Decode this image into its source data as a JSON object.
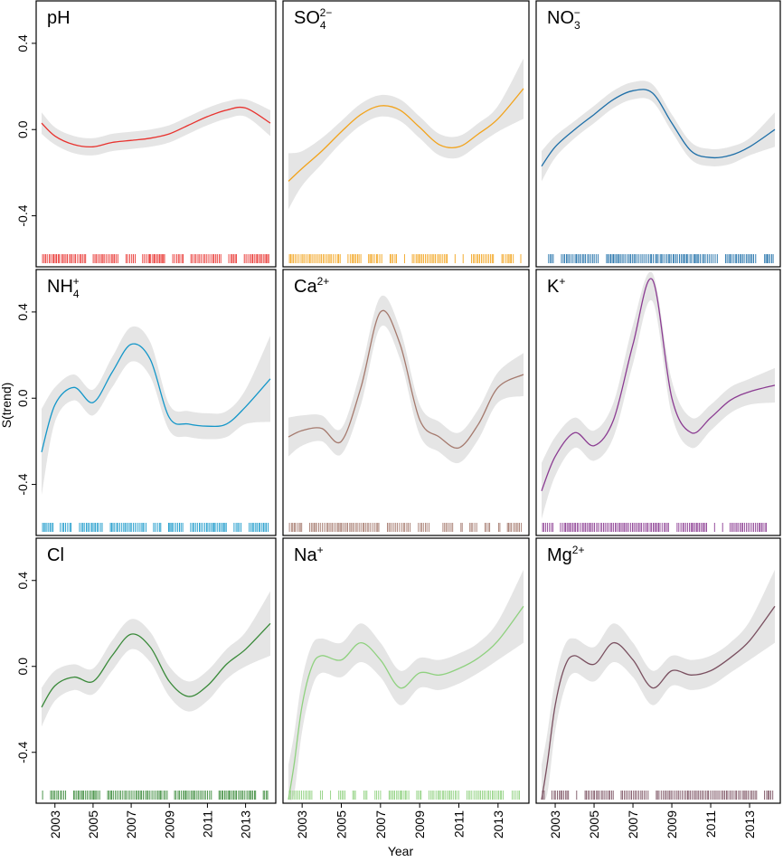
{
  "chart_data": {
    "type": "line",
    "ylabel": "S(trend)",
    "xlabel": "Year",
    "x_ticks": [
      "2003",
      "2005",
      "2007",
      "2009",
      "2011",
      "2013"
    ],
    "y_ticks": [
      "0.4",
      "0.0",
      "-0.4"
    ],
    "xlim": [
      2002.3,
      2014.3
    ],
    "ylim": [
      -0.62,
      0.58
    ],
    "panels": [
      {
        "title": "pH",
        "title_base": "pH",
        "title_sub": "",
        "title_sup": "",
        "color": "#e8322e",
        "x": [
          2002.3,
          2003,
          2004,
          2005,
          2006,
          2007,
          2008,
          2009,
          2010,
          2011,
          2012,
          2013,
          2014.3
        ],
        "y": [
          0.03,
          -0.03,
          -0.07,
          -0.08,
          -0.06,
          -0.05,
          -0.04,
          -0.02,
          0.02,
          0.06,
          0.09,
          0.1,
          0.03
        ],
        "band": [
          0.05,
          0.04,
          0.04,
          0.04,
          0.04,
          0.04,
          0.04,
          0.04,
          0.04,
          0.04,
          0.04,
          0.04,
          0.06
        ]
      },
      {
        "title": "SO42−",
        "title_base": "SO",
        "title_sub": "4",
        "title_sup": "2−",
        "color": "#f2a31b",
        "x": [
          2002.3,
          2003,
          2004,
          2005,
          2006,
          2007,
          2008,
          2009,
          2010,
          2011,
          2012,
          2013,
          2014.3
        ],
        "y": [
          -0.24,
          -0.18,
          -0.1,
          -0.01,
          0.07,
          0.11,
          0.09,
          0.01,
          -0.07,
          -0.08,
          -0.02,
          0.05,
          0.19
        ],
        "band": [
          0.13,
          0.08,
          0.06,
          0.05,
          0.05,
          0.05,
          0.05,
          0.05,
          0.05,
          0.05,
          0.05,
          0.06,
          0.14
        ]
      },
      {
        "title": "NO3−",
        "title_base": "NO",
        "title_sub": "3",
        "title_sup": "−",
        "color": "#1e6fa8",
        "x": [
          2002.3,
          2003,
          2004,
          2005,
          2006,
          2007,
          2008,
          2009,
          2010,
          2011,
          2012,
          2013,
          2014.3
        ],
        "y": [
          -0.17,
          -0.08,
          0.0,
          0.07,
          0.14,
          0.18,
          0.17,
          0.03,
          -0.1,
          -0.13,
          -0.12,
          -0.08,
          0.0
        ],
        "band": [
          0.07,
          0.05,
          0.04,
          0.04,
          0.04,
          0.04,
          0.04,
          0.04,
          0.04,
          0.04,
          0.04,
          0.04,
          0.08
        ]
      },
      {
        "title": "NH4+",
        "title_base": "NH",
        "title_sub": "4",
        "title_sup": "+",
        "color": "#1597c9",
        "x": [
          2002.3,
          2003,
          2004,
          2005,
          2006,
          2007,
          2008,
          2009,
          2010,
          2011,
          2012,
          2013,
          2014.3
        ],
        "y": [
          -0.25,
          -0.03,
          0.05,
          -0.02,
          0.12,
          0.25,
          0.18,
          -0.09,
          -0.12,
          -0.13,
          -0.12,
          -0.04,
          0.09
        ],
        "band": [
          0.2,
          0.08,
          0.06,
          0.06,
          0.07,
          0.08,
          0.08,
          0.06,
          0.06,
          0.06,
          0.06,
          0.08,
          0.2
        ]
      },
      {
        "title": "Ca2+",
        "title_base": "Ca",
        "title_sub": "",
        "title_sup": "2+",
        "color": "#a57a6e",
        "x": [
          2002.3,
          2003,
          2004,
          2005,
          2006,
          2007,
          2008,
          2009,
          2010,
          2011,
          2012,
          2013,
          2014.3
        ],
        "y": [
          -0.18,
          -0.15,
          -0.14,
          -0.2,
          0.05,
          0.4,
          0.25,
          -0.1,
          -0.18,
          -0.23,
          -0.12,
          0.05,
          0.11
        ],
        "band": [
          0.09,
          0.07,
          0.06,
          0.06,
          0.08,
          0.07,
          0.07,
          0.07,
          0.07,
          0.07,
          0.07,
          0.07,
          0.1
        ]
      },
      {
        "title": "K+",
        "title_base": "K",
        "title_sub": "",
        "title_sup": "+",
        "color": "#8b3c92",
        "x": [
          2002.3,
          2003,
          2004,
          2005,
          2006,
          2007,
          2008,
          2009,
          2010,
          2011,
          2012,
          2013,
          2014.3
        ],
        "y": [
          -0.43,
          -0.27,
          -0.16,
          -0.22,
          -0.1,
          0.25,
          0.55,
          0.0,
          -0.16,
          -0.09,
          -0.01,
          0.03,
          0.06
        ],
        "band": [
          0.13,
          0.09,
          0.07,
          0.07,
          0.08,
          0.09,
          0.1,
          0.08,
          0.07,
          0.06,
          0.06,
          0.06,
          0.08
        ]
      },
      {
        "title": "Cl",
        "title_base": "Cl",
        "title_sub": "",
        "title_sup": "",
        "color": "#3a8a3a",
        "x": [
          2002.3,
          2003,
          2004,
          2005,
          2006,
          2007,
          2008,
          2009,
          2010,
          2011,
          2012,
          2013,
          2014.3
        ],
        "y": [
          -0.19,
          -0.09,
          -0.05,
          -0.07,
          0.05,
          0.15,
          0.09,
          -0.07,
          -0.14,
          -0.09,
          0.01,
          0.08,
          0.2
        ],
        "band": [
          0.09,
          0.07,
          0.06,
          0.06,
          0.07,
          0.07,
          0.07,
          0.07,
          0.07,
          0.07,
          0.07,
          0.08,
          0.15
        ]
      },
      {
        "title": "Na+",
        "title_base": "Na",
        "title_sub": "",
        "title_sup": "+",
        "color": "#8fd17f",
        "x": [
          2002.3,
          2002.6,
          2003,
          2003.5,
          2004,
          2005,
          2006,
          2007,
          2008,
          2009,
          2010,
          2011,
          2012,
          2013,
          2014.3
        ],
        "y": [
          -0.62,
          -0.45,
          -0.18,
          0.0,
          0.05,
          0.03,
          0.11,
          0.03,
          -0.1,
          -0.03,
          -0.04,
          -0.01,
          0.04,
          0.12,
          0.28
        ],
        "band": [
          0.16,
          0.14,
          0.12,
          0.1,
          0.08,
          0.08,
          0.09,
          0.08,
          0.08,
          0.07,
          0.07,
          0.07,
          0.07,
          0.09,
          0.17
        ]
      },
      {
        "title": "Mg2+",
        "title_base": "Mg",
        "title_sub": "",
        "title_sup": "2+",
        "color": "#7a5060",
        "x": [
          2002.3,
          2002.6,
          2003,
          2003.5,
          2004,
          2005,
          2006,
          2007,
          2008,
          2009,
          2010,
          2011,
          2012,
          2013,
          2014.3
        ],
        "y": [
          -0.62,
          -0.45,
          -0.18,
          0.0,
          0.05,
          0.01,
          0.11,
          0.03,
          -0.1,
          -0.02,
          -0.04,
          -0.02,
          0.04,
          0.12,
          0.28
        ],
        "band": [
          0.16,
          0.14,
          0.12,
          0.1,
          0.08,
          0.08,
          0.09,
          0.08,
          0.08,
          0.07,
          0.07,
          0.07,
          0.07,
          0.09,
          0.17
        ]
      }
    ]
  }
}
